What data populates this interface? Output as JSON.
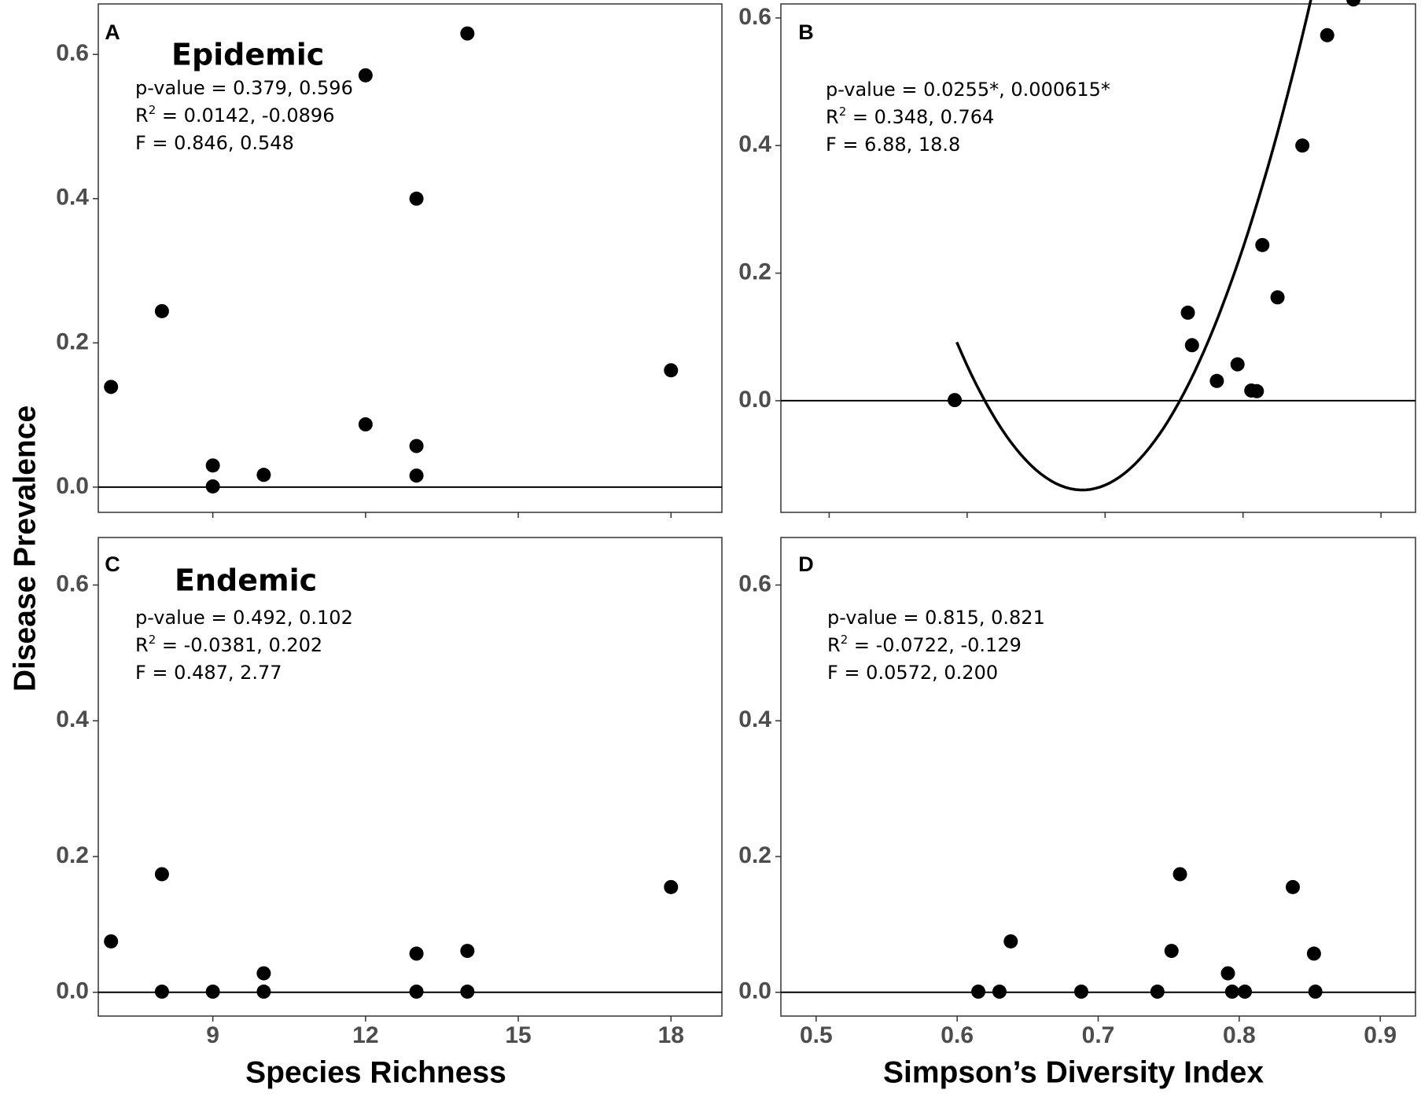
{
  "figure": {
    "y_axis_title": "Disease Prevalence",
    "x_axis_titles": [
      "Species Richness",
      "Simpson’s Diversity Index"
    ]
  },
  "chart_data": [
    {
      "id": "A",
      "letter": "A",
      "title": "Epidemic",
      "type": "scatter",
      "xlim": [
        6.75,
        19.0
      ],
      "ylim": [
        -0.035,
        0.67
      ],
      "xticks": [
        9,
        12,
        15,
        18
      ],
      "xtick_labels": [
        "9",
        "12",
        "15",
        "18"
      ],
      "yticks": [
        0.0,
        0.2,
        0.4,
        0.6
      ],
      "ytick_labels": [
        "0.0",
        "0.2",
        "0.4",
        "0.6"
      ],
      "show_x_labels": false,
      "stats": [
        {
          "pre": "p-value = 0.379, 0.596",
          "sup": "",
          "post": ""
        },
        {
          "pre": "R",
          "sup": "2",
          "post": " = 0.0142, -0.0896"
        },
        {
          "pre": "F = 0.846, 0.548",
          "sup": "",
          "post": ""
        }
      ],
      "x": [
        7,
        8,
        9,
        9,
        10,
        12,
        12,
        13,
        13,
        13,
        14,
        18
      ],
      "y": [
        0.139,
        0.244,
        0.03,
        0.001,
        0.017,
        0.571,
        0.087,
        0.4,
        0.057,
        0.016,
        0.629,
        0.162
      ],
      "hline": 0.0,
      "curve": null
    },
    {
      "id": "B",
      "letter": "B",
      "title": "",
      "type": "scatter",
      "xlim": [
        0.465,
        0.925
      ],
      "ylim": [
        -0.175,
        0.622
      ],
      "xticks": [
        0.5,
        0.6,
        0.7,
        0.8,
        0.9
      ],
      "xtick_labels": [
        "0.5",
        "0.6",
        "0.7",
        "0.8",
        "0.9"
      ],
      "yticks": [
        0.0,
        0.2,
        0.4,
        0.6
      ],
      "ytick_labels": [
        "0.0",
        "0.2",
        "0.4",
        "0.6"
      ],
      "show_x_labels": false,
      "stats": [
        {
          "pre": "p-value = 0.0255*, 0.000615*",
          "sup": "",
          "post": ""
        },
        {
          "pre": "R",
          "sup": "2",
          "post": " = 0.348, 0.764"
        },
        {
          "pre": "F = 6.88, 18.8",
          "sup": "",
          "post": ""
        }
      ],
      "x": [
        0.591,
        0.76,
        0.763,
        0.781,
        0.796,
        0.806,
        0.81,
        0.814,
        0.825,
        0.843,
        0.861,
        0.88
      ],
      "y": [
        0.001,
        0.138,
        0.087,
        0.031,
        0.057,
        0.016,
        0.015,
        0.244,
        0.162,
        0.4,
        0.573,
        0.629
      ],
      "hline": 0.0,
      "curve": {
        "x_from": 0.5925,
        "x_to": 0.879,
        "vertex_x": 0.6835,
        "vertex_y": -0.14,
        "coef": 28.0
      }
    },
    {
      "id": "C",
      "letter": "C",
      "title": "Endemic",
      "type": "scatter",
      "xlim": [
        6.75,
        19.0
      ],
      "ylim": [
        -0.035,
        0.67
      ],
      "xticks": [
        9,
        12,
        15,
        18
      ],
      "xtick_labels": [
        "9",
        "12",
        "15",
        "18"
      ],
      "yticks": [
        0.0,
        0.2,
        0.4,
        0.6
      ],
      "ytick_labels": [
        "0.0",
        "0.2",
        "0.4",
        "0.6"
      ],
      "show_x_labels": true,
      "stats": [
        {
          "pre": "p-value = 0.492, 0.102",
          "sup": "",
          "post": ""
        },
        {
          "pre": "R",
          "sup": "2",
          "post": " = -0.0381, 0.202"
        },
        {
          "pre": "F = 0.487, 2.77",
          "sup": "",
          "post": ""
        }
      ],
      "x": [
        7,
        8,
        8,
        9,
        10,
        10,
        13,
        13,
        14,
        14,
        18
      ],
      "y": [
        0.075,
        0.174,
        0.001,
        0.001,
        0.028,
        0.001,
        0.057,
        0.001,
        0.061,
        0.001,
        0.155
      ],
      "hline": 0.0,
      "curve": null
    },
    {
      "id": "D",
      "letter": "D",
      "title": "",
      "type": "scatter",
      "xlim": [
        0.475,
        0.925
      ],
      "ylim": [
        -0.035,
        0.67
      ],
      "xticks": [
        0.5,
        0.6,
        0.7,
        0.8,
        0.9
      ],
      "xtick_labels": [
        "0.5",
        "0.6",
        "0.7",
        "0.8",
        "0.9"
      ],
      "yticks": [
        0.0,
        0.2,
        0.4,
        0.6
      ],
      "ytick_labels": [
        "0.0",
        "0.2",
        "0.4",
        "0.6"
      ],
      "show_x_labels": true,
      "stats": [
        {
          "pre": "p-value = 0.815, 0.821",
          "sup": "",
          "post": ""
        },
        {
          "pre": "R",
          "sup": "2",
          "post": " = -0.0722, -0.129"
        },
        {
          "pre": "F = 0.0572, 0.200",
          "sup": "",
          "post": ""
        }
      ],
      "x": [
        0.615,
        0.63,
        0.638,
        0.688,
        0.742,
        0.752,
        0.758,
        0.792,
        0.795,
        0.804,
        0.838,
        0.853,
        0.854
      ],
      "y": [
        0.001,
        0.001,
        0.075,
        0.001,
        0.001,
        0.061,
        0.174,
        0.028,
        0.001,
        0.001,
        0.155,
        0.057,
        0.001
      ],
      "hline": 0.0,
      "curve": null
    }
  ]
}
